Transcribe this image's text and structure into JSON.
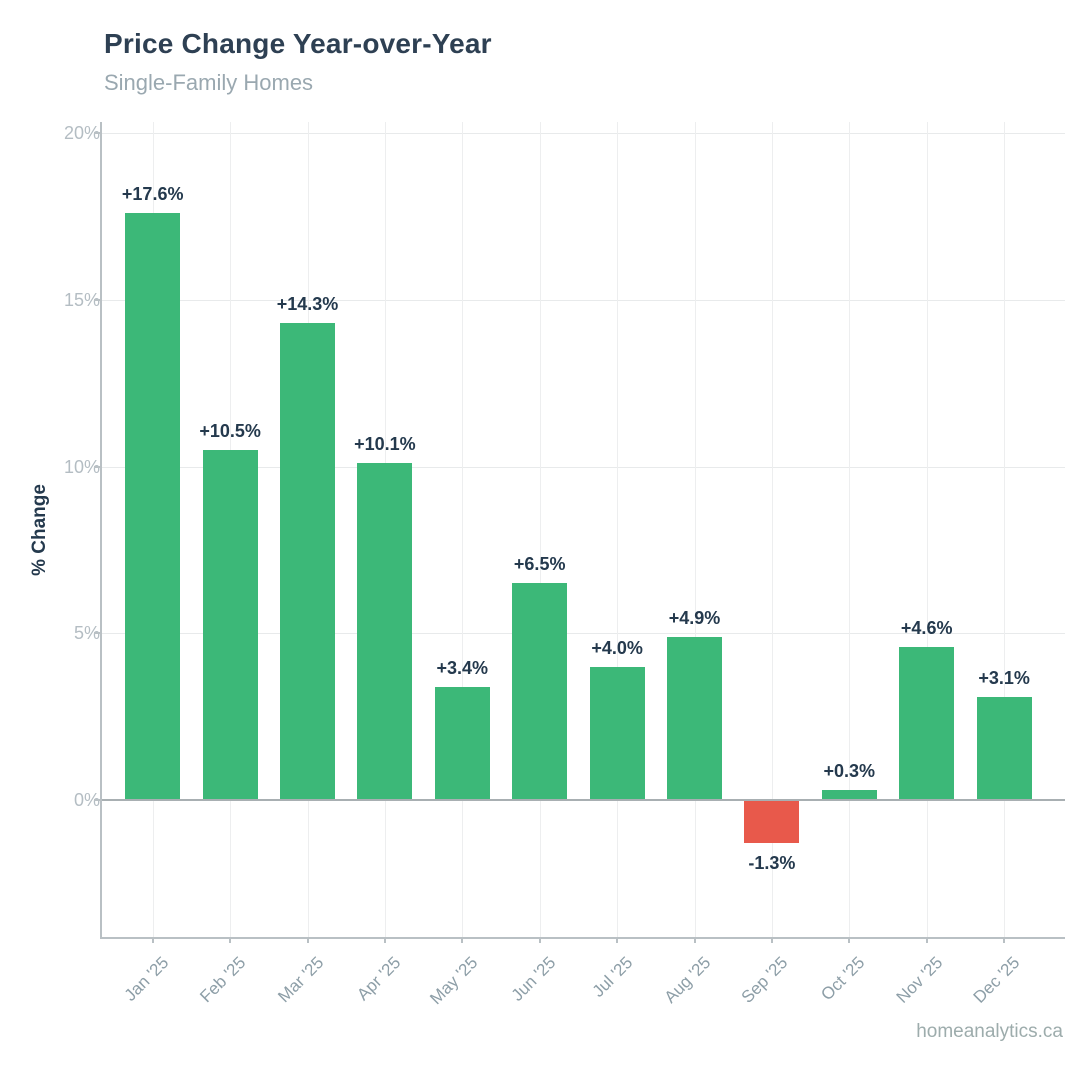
{
  "header": {
    "title": "Price Change Year-over-Year",
    "subtitle": "Single-Family Homes"
  },
  "footer": {
    "brand": "homeanalytics.ca"
  },
  "chart_data": {
    "type": "bar",
    "title": "Price Change Year-over-Year",
    "subtitle": "Single-Family Homes",
    "xlabel": "",
    "ylabel": "% Change",
    "categories": [
      "Jan '25",
      "Feb '25",
      "Mar '25",
      "Apr '25",
      "May '25",
      "Jun '25",
      "Jul '25",
      "Aug '25",
      "Sep '25",
      "Oct '25",
      "Nov '25",
      "Dec '25"
    ],
    "values": [
      17.6,
      10.5,
      14.3,
      10.1,
      3.4,
      6.5,
      4.0,
      4.9,
      -1.3,
      0.3,
      4.6,
      3.1
    ],
    "bar_labels": [
      "+17.6%",
      "+10.5%",
      "+14.3%",
      "+10.1%",
      "+3.4%",
      "+6.5%",
      "+4.0%",
      "+4.9%",
      "-1.3%",
      "+0.3%",
      "+4.6%",
      "+3.1%"
    ],
    "y_ticks": [
      {
        "value": 20,
        "label": "20%"
      },
      {
        "value": 15,
        "label": "15%"
      },
      {
        "value": 10,
        "label": "10%"
      },
      {
        "value": 5,
        "label": "5%"
      },
      {
        "value": 0,
        "label": "0%"
      }
    ],
    "ylim": [
      -4.1,
      20.4
    ],
    "grid": true,
    "legend": "none",
    "colors": {
      "positive": "#3cb878",
      "negative": "#e8594b"
    }
  }
}
